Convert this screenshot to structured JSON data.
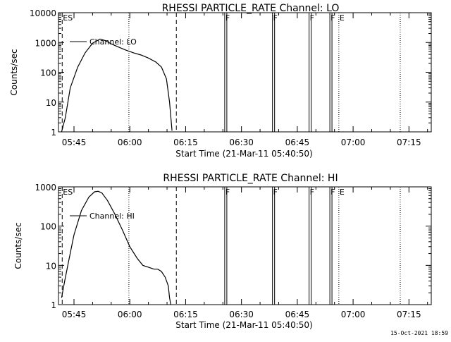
{
  "footer": {
    "timestamp": "15-Oct-2021 18:59"
  },
  "chart_data": [
    {
      "type": "line",
      "title": "RHESSI PARTICLE_RATE Channel: LO",
      "xlabel": "Start Time (21-Mar-11 05:40:50)",
      "ylabel": "Counts/sec",
      "yscale": "log",
      "xlim": [
        "05:40:50",
        "07:21:00"
      ],
      "ylim": [
        1,
        10000
      ],
      "x_ticks": [
        "05:45",
        "06:00",
        "06:15",
        "06:30",
        "06:45",
        "07:00",
        "07:15"
      ],
      "y_ticks": [
        "1",
        "10",
        "100",
        "1000",
        "10000"
      ],
      "legend_position": "top-left",
      "series": [
        {
          "name": "Channel: LO",
          "x": [
            "05:41:40",
            "05:42:40",
            "05:44:00",
            "05:46:00",
            "05:48:00",
            "05:50:00",
            "05:52:00",
            "05:53:30",
            "05:55:00",
            "05:57:00",
            "05:59:00",
            "06:01:00",
            "06:03:00",
            "06:05:00",
            "06:07:00",
            "06:08:30",
            "06:09:50",
            "06:10:40",
            "06:11:20"
          ],
          "values": [
            1,
            3,
            30,
            150,
            450,
            950,
            1300,
            1150,
            900,
            700,
            550,
            450,
            380,
            300,
            220,
            150,
            60,
            10,
            1.1
          ]
        }
      ],
      "annotations": [
        {
          "label": "ES",
          "time": "05:41:50",
          "style": "dashed"
        },
        {
          "label": "",
          "time": "05:59:45",
          "style": "dotted"
        },
        {
          "label": "",
          "time": "06:12:30",
          "style": "dashed"
        },
        {
          "label": "F",
          "time": "06:25:30",
          "style": "solid"
        },
        {
          "label": "F",
          "time": "06:38:20",
          "style": "solid"
        },
        {
          "label": "F",
          "time": "06:48:10",
          "style": "solid"
        },
        {
          "label": "F",
          "time": "06:53:45",
          "style": "solid"
        },
        {
          "label": "E",
          "time": "06:56:10",
          "style": "dotted"
        },
        {
          "label": "",
          "time": "07:12:40",
          "style": "dotted"
        }
      ]
    },
    {
      "type": "line",
      "title": "RHESSI PARTICLE_RATE Channel: HI",
      "xlabel": "Start Time (21-Mar-11 05:40:50)",
      "ylabel": "Counts/sec",
      "yscale": "log",
      "xlim": [
        "05:40:50",
        "07:21:00"
      ],
      "ylim": [
        1,
        1000
      ],
      "x_ticks": [
        "05:45",
        "06:00",
        "06:15",
        "06:30",
        "06:45",
        "07:00",
        "07:15"
      ],
      "y_ticks": [
        "1",
        "10",
        "100",
        "1000"
      ],
      "legend_position": "top-left",
      "series": [
        {
          "name": "Channel: HI",
          "x": [
            "05:41:40",
            "05:42:30",
            "05:43:30",
            "05:45:00",
            "05:47:00",
            "05:49:00",
            "05:50:30",
            "05:51:30",
            "05:52:30",
            "05:54:00",
            "05:56:00",
            "05:58:00",
            "06:00:00",
            "06:02:00",
            "06:03:30",
            "06:05:00",
            "06:06:30",
            "06:07:30",
            "06:08:30",
            "06:09:30",
            "06:10:20",
            "06:10:40",
            "06:11:00"
          ],
          "values": [
            1.5,
            4,
            12,
            60,
            250,
            550,
            750,
            770,
            700,
            450,
            200,
            80,
            30,
            15,
            10,
            9,
            8,
            8,
            7,
            5,
            3,
            1.5,
            1
          ]
        }
      ],
      "annotations": [
        {
          "label": "ES",
          "time": "05:41:50",
          "style": "dashed"
        },
        {
          "label": "",
          "time": "05:59:45",
          "style": "dotted"
        },
        {
          "label": "",
          "time": "06:12:30",
          "style": "dashed"
        },
        {
          "label": "F",
          "time": "06:25:30",
          "style": "solid"
        },
        {
          "label": "F",
          "time": "06:38:20",
          "style": "solid"
        },
        {
          "label": "F",
          "time": "06:48:10",
          "style": "solid"
        },
        {
          "label": "F",
          "time": "06:53:45",
          "style": "solid"
        },
        {
          "label": "E",
          "time": "06:56:10",
          "style": "dotted"
        },
        {
          "label": "",
          "time": "07:12:40",
          "style": "dotted"
        }
      ]
    }
  ]
}
